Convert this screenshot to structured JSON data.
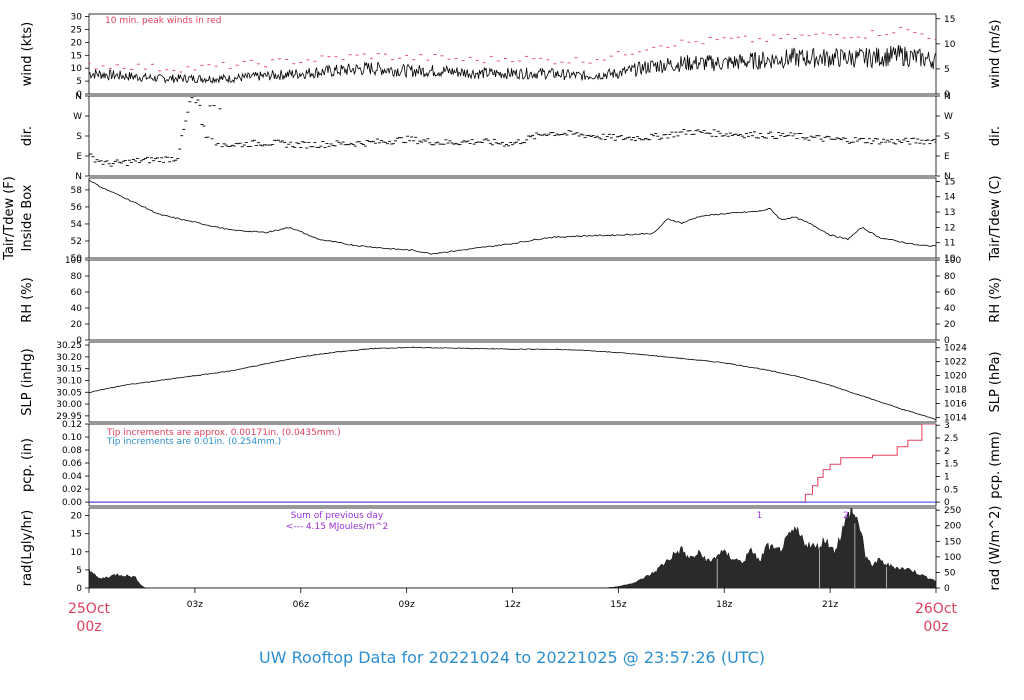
{
  "chart_data": {
    "type": "line",
    "title": "UW Rooftop Data for 20221024  to  20221025 @ 23:57:26  (UTC)",
    "x_axis": {
      "start_label": [
        "25Oct",
        "00z"
      ],
      "end_label": [
        "26Oct",
        "00z"
      ],
      "ticks": [
        "03z",
        "06z",
        "09z",
        "12z",
        "15z",
        "18z",
        "21z"
      ],
      "range_hours": [
        0,
        24
      ]
    },
    "panels": [
      {
        "id": "wind",
        "ylabel_left": "wind (kts)",
        "ylabel_right": "wind (m/s)",
        "left_ticks": [
          0,
          5,
          10,
          15,
          20,
          25,
          30
        ],
        "right_ticks": [
          0,
          5,
          10,
          15
        ],
        "ylim": [
          0,
          31
        ],
        "annotation": "10 min. peak winds in red",
        "series": [
          {
            "kind": "line",
            "color": "#000000",
            "x": [
              0,
              1,
              2,
              3,
              4,
              5,
              6,
              7,
              8,
              9,
              10,
              11,
              12,
              13,
              14,
              15,
              16,
              17,
              18,
              19,
              20,
              21,
              22,
              23,
              24
            ],
            "y": [
              8,
              7,
              6,
              6,
              6,
              7,
              8,
              9,
              10,
              9,
              9,
              8,
              8,
              8,
              7,
              8,
              11,
              12,
              12,
              13,
              14,
              14,
              14,
              15,
              13
            ]
          },
          {
            "kind": "dashes",
            "color": "#e04060",
            "x": [
              0,
              1,
              2,
              3,
              4,
              5,
              6,
              7,
              8,
              9,
              10,
              11,
              12,
              13,
              14,
              15,
              16,
              17,
              18,
              19,
              20,
              21,
              22,
              23,
              24
            ],
            "y": [
              11,
              11,
              10,
              10,
              11,
              12,
              13,
              14,
              15,
              14,
              14,
              13,
              14,
              13,
              13,
              15,
              19,
              20,
              21,
              21,
              22,
              23,
              23,
              25,
              22
            ]
          }
        ]
      },
      {
        "id": "dir",
        "ylabel_left": "dir.",
        "ylabel_right": "dir.",
        "left_ticks": [
          "N",
          "E",
          "S",
          "W",
          "N"
        ],
        "right_ticks": [
          "N",
          "E",
          "S",
          "W",
          "N"
        ],
        "ylim": [
          0,
          360
        ],
        "series": [
          {
            "kind": "dashes",
            "color": "#000000",
            "x": [
              0,
              0.5,
              1,
              1.5,
              2,
              2.5,
              2.9,
              3,
              3.3,
              3.6,
              4,
              5,
              6,
              7,
              8,
              9,
              10,
              11,
              12,
              13,
              14,
              15,
              16,
              17,
              18,
              19,
              20,
              21,
              22,
              23,
              24
            ],
            "y": [
              90,
              55,
              60,
              70,
              75,
              80,
              350,
              355,
              190,
              150,
              140,
              150,
              140,
              145,
              150,
              165,
              150,
              155,
              145,
              195,
              185,
              170,
              175,
              200,
              190,
              185,
              180,
              165,
              160,
              155,
              160
            ]
          }
        ]
      },
      {
        "id": "temp",
        "ylabel_left": "Inside Box",
        "ylabel_left_outer": "Tair/Tdew (F)",
        "ylabel_right": "Tair/Tdew (C)",
        "left_ticks": [
          50,
          52,
          54,
          56,
          58
        ],
        "right_ticks": [
          10,
          11,
          12,
          13,
          14,
          15
        ],
        "ylim": [
          50,
          59.4
        ],
        "series": [
          {
            "kind": "line",
            "color": "#000000",
            "x": [
              0,
              0.3,
              1,
              2,
              3,
              4,
              5,
              5.7,
              6.5,
              7.5,
              8.5,
              9.2,
              9.7,
              10.5,
              12,
              13,
              14,
              15,
              16,
              16.4,
              16.8,
              17.3,
              18,
              19,
              19.3,
              19.6,
              20,
              20.5,
              21,
              21.5,
              21.9,
              22.4,
              23,
              23.5,
              24
            ],
            "y": [
              59.2,
              58.4,
              57.1,
              55.1,
              54.2,
              53.3,
              53.0,
              53.6,
              52.2,
              51.5,
              51.1,
              50.9,
              50.5,
              50.9,
              51.7,
              52.4,
              52.6,
              52.7,
              52.9,
              54.6,
              54.1,
              54.9,
              55.2,
              55.5,
              55.8,
              54.5,
              54.8,
              53.9,
              52.7,
              52.2,
              53.6,
              52.4,
              51.9,
              51.5,
              51.4
            ]
          }
        ]
      },
      {
        "id": "rh",
        "ylabel_left": "RH (%)",
        "ylabel_right": "RH (%)",
        "left_ticks": [
          0,
          20,
          40,
          60,
          80,
          100
        ],
        "right_ticks": [
          0,
          20,
          40,
          60,
          80,
          100
        ],
        "ylim": [
          0,
          100
        ],
        "series": []
      },
      {
        "id": "slp",
        "ylabel_left": "SLP (inHg)",
        "ylabel_right": "SLP (hPa)",
        "left_ticks": [
          29.95,
          30.0,
          30.05,
          30.1,
          30.15,
          30.2,
          30.25
        ],
        "right_ticks": [
          1014,
          1016,
          1018,
          1020,
          1022,
          1024
        ],
        "ylim": [
          29.924,
          30.263
        ],
        "series": [
          {
            "kind": "line",
            "color": "#000000",
            "x": [
              0,
              1,
              2,
              3,
              4,
              5,
              6,
              7,
              8,
              9,
              10,
              11,
              12,
              13,
              14,
              15,
              16,
              17,
              18,
              19,
              20,
              21,
              22,
              23,
              24
            ],
            "y": [
              30.05,
              30.08,
              30.1,
              30.12,
              30.14,
              30.17,
              30.2,
              30.22,
              30.235,
              30.24,
              30.238,
              30.235,
              30.233,
              30.232,
              30.228,
              30.218,
              30.205,
              30.19,
              30.175,
              30.15,
              30.12,
              30.08,
              30.03,
              29.98,
              29.935
            ]
          }
        ]
      },
      {
        "id": "pcp",
        "ylabel_left": "pcp. (in)",
        "ylabel_right": "pcp. (mm)",
        "left_ticks": [
          0.0,
          0.02,
          0.04,
          0.06,
          0.08,
          0.1,
          0.12
        ],
        "right_ticks": [
          0,
          0.5,
          1,
          1.5,
          2,
          2.5,
          3
        ],
        "ylim": [
          -0.006,
          0.12
        ],
        "annotations": [
          "Tip increments are approx. 0.00171in. (0.0435mm.)",
          "Tip increments are 0.01in. (0.254mm.)"
        ],
        "series": [
          {
            "kind": "step",
            "color": "#e04060",
            "x": [
              0,
              20.1,
              20.3,
              20.5,
              20.65,
              20.8,
              21.0,
              21.3,
              22.2,
              22.9,
              23.2,
              23.6,
              24
            ],
            "y": [
              0,
              0,
              0.012,
              0.025,
              0.038,
              0.05,
              0.058,
              0.068,
              0.072,
              0.085,
              0.095,
              0.12,
              0.12
            ]
          },
          {
            "kind": "line",
            "color": "#3a3ae0",
            "x": [
              0,
              24
            ],
            "y": [
              0,
              0
            ]
          }
        ]
      },
      {
        "id": "rad",
        "ylabel_left": "rad(Lgly/hr)",
        "ylabel_right": "rad (W/m^2)",
        "left_ticks": [
          0,
          5,
          10,
          15,
          20
        ],
        "right_ticks": [
          0,
          50,
          100,
          150,
          200,
          250
        ],
        "ylim": [
          0,
          22.1
        ],
        "annotations": [
          "Sum of previous day",
          "<--- 4.15 MJoules/m^2",
          "1",
          "2"
        ],
        "series": [
          {
            "kind": "area",
            "color": "#2a2a2a",
            "x": [
              0,
              0.1,
              0.3,
              0.6,
              0.8,
              1.0,
              1.3,
              1.5,
              1.6,
              14.6,
              15.0,
              15.5,
              16.0,
              16.3,
              16.6,
              16.8,
              17.0,
              17.3,
              17.6,
              17.9,
              18.2,
              18.5,
              18.8,
              19.0,
              19.2,
              19.5,
              19.7,
              20.0,
              20.3,
              20.6,
              20.9,
              21.1,
              21.3,
              21.6,
              21.9,
              22.0,
              22.2,
              22.4,
              22.7,
              23.0,
              23.3,
              23.6,
              24
            ],
            "y": [
              5.5,
              4.0,
              2.5,
              3.2,
              3.8,
              3.5,
              3.0,
              0.6,
              0,
              0,
              0.4,
              1.6,
              4.2,
              6.8,
              9.5,
              10.5,
              8.0,
              9.5,
              7.0,
              10.0,
              8.5,
              7.0,
              10.5,
              7.0,
              11.5,
              10.0,
              12.0,
              16.0,
              12.5,
              11.0,
              13.5,
              10.0,
              14.5,
              22.0,
              15.5,
              8.0,
              6.5,
              7.5,
              6.0,
              5.5,
              5.0,
              3.5,
              2.0
            ]
          }
        ]
      }
    ]
  }
}
